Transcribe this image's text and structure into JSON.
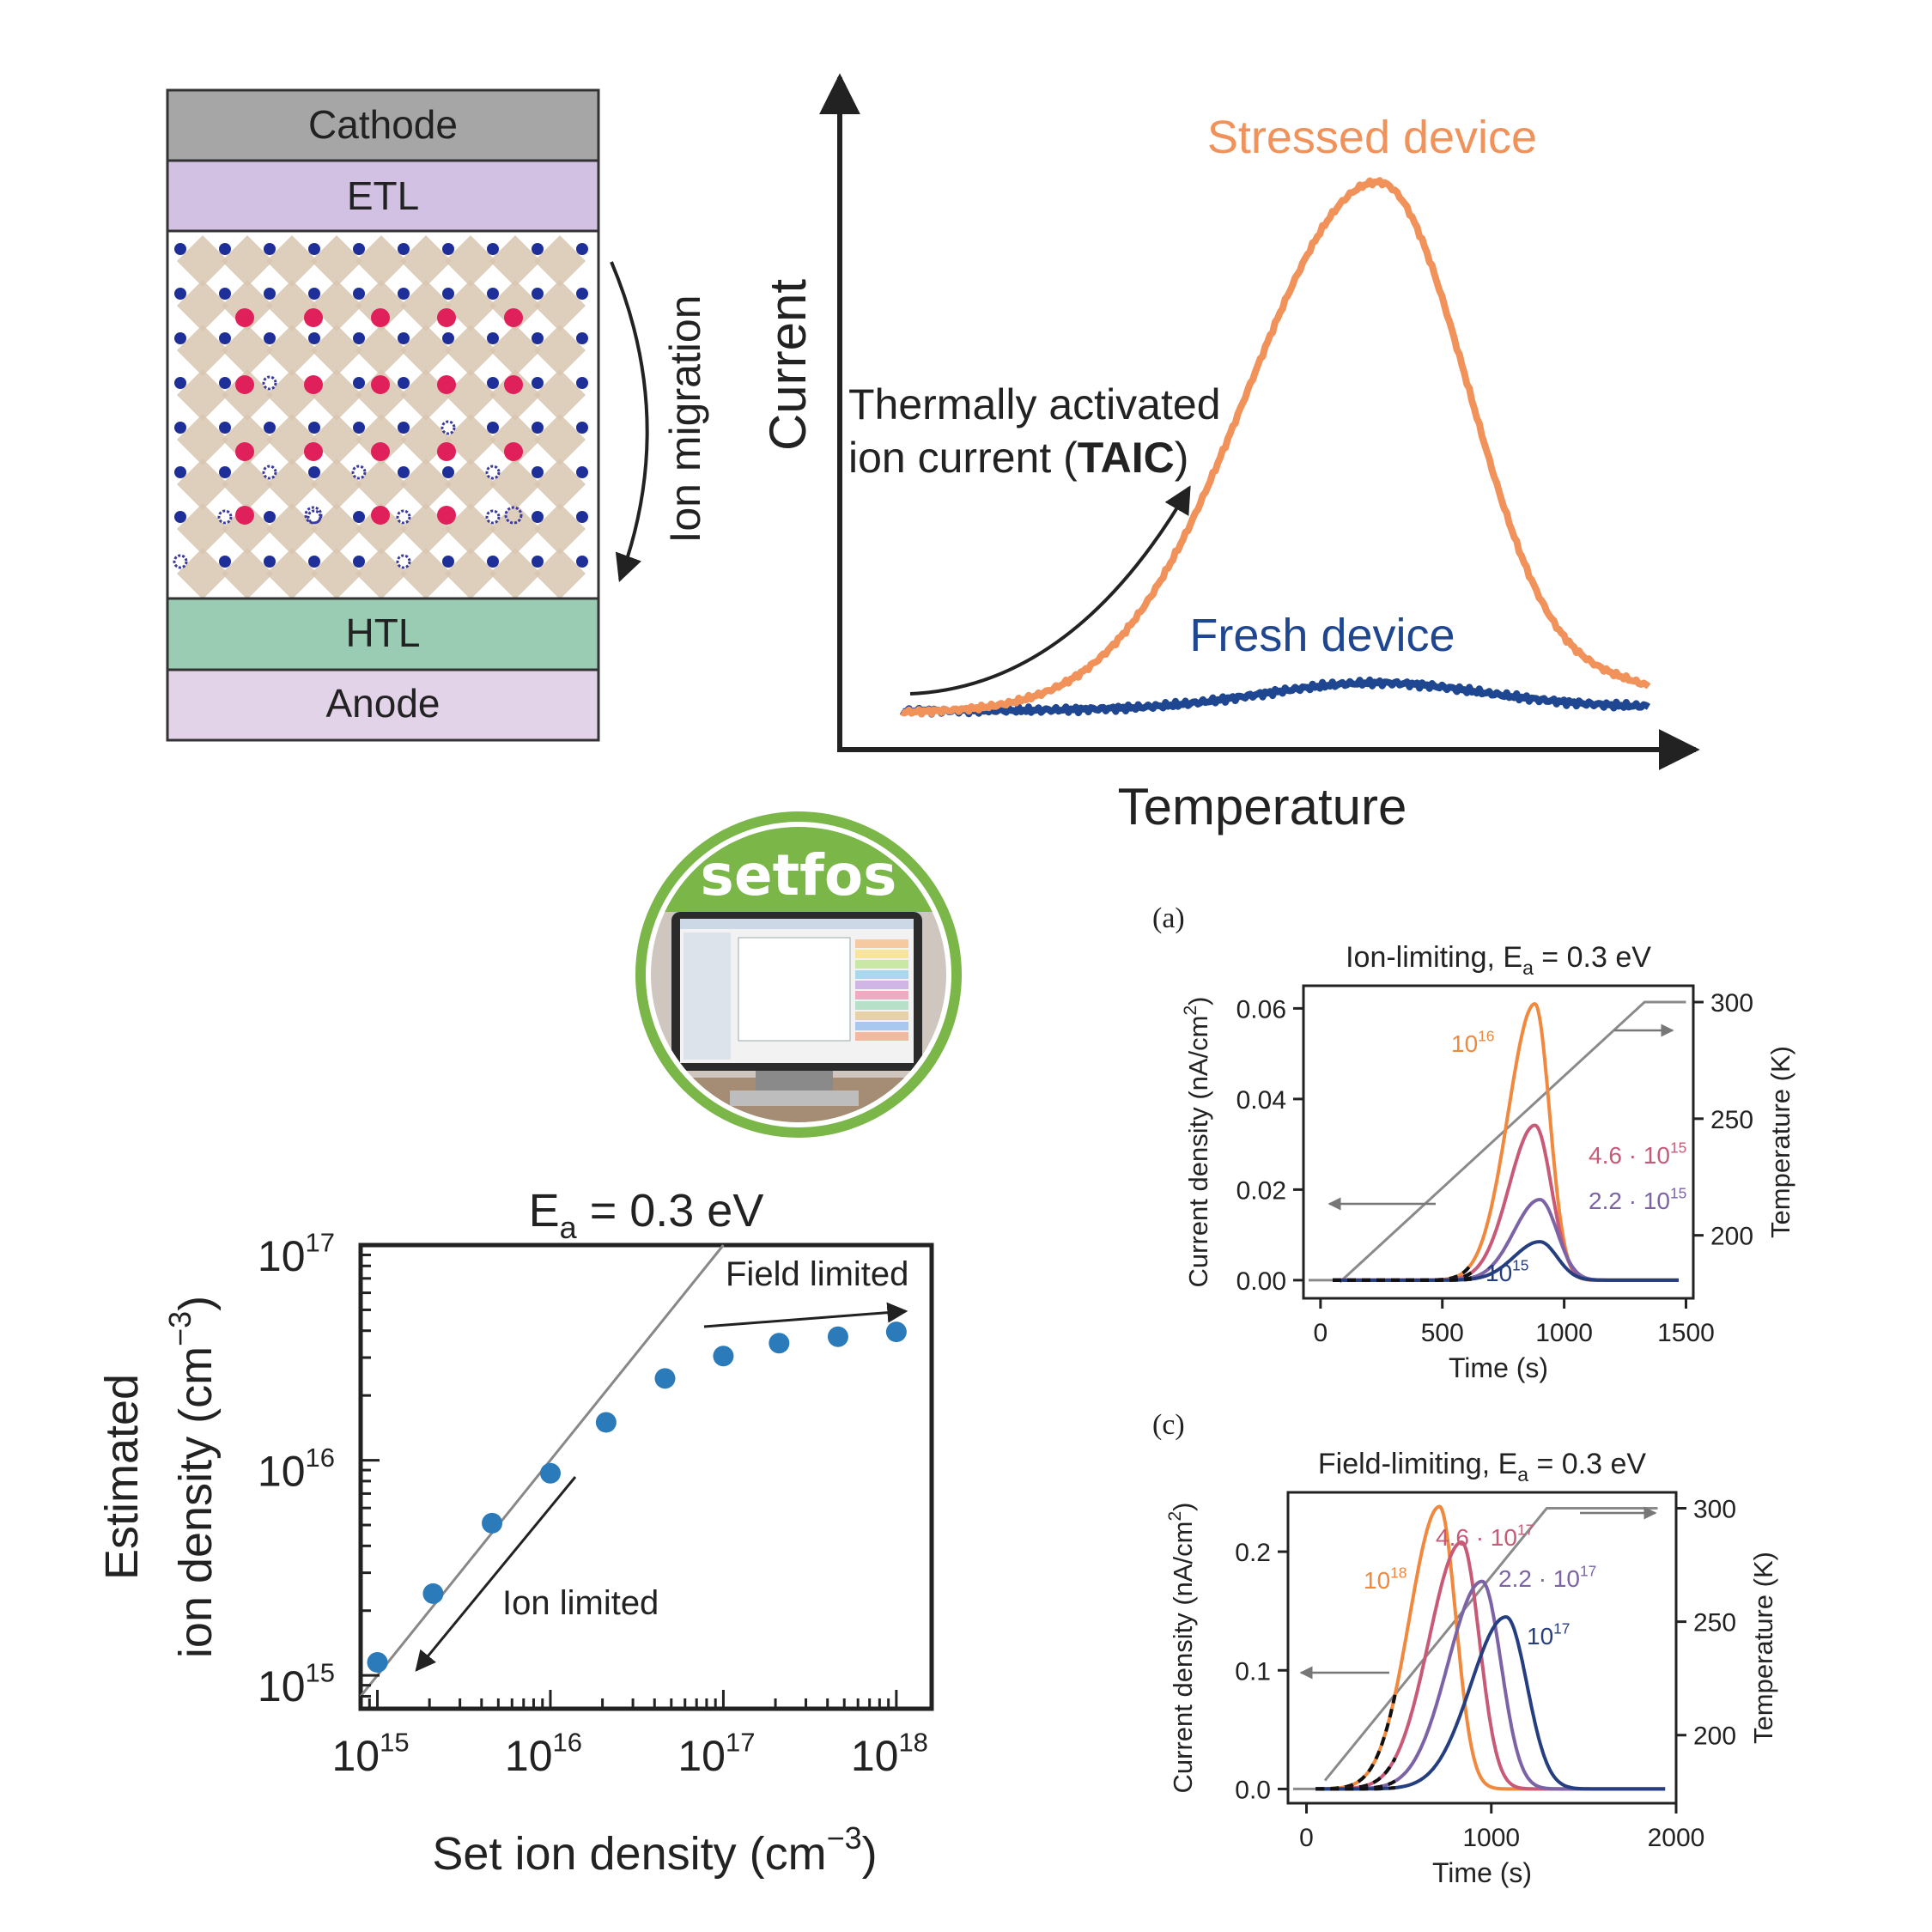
{
  "stack": {
    "layers": [
      {
        "name": "Cathode",
        "color": "#a6a6a6"
      },
      {
        "name": "ETL",
        "color": "#d3c1e3"
      },
      {
        "name": "HTL",
        "color": "#99ccb3"
      },
      {
        "name": "Anode",
        "color": "#e3d3e8"
      }
    ],
    "migration_label": "Ion migration"
  },
  "taic_schematic": {
    "y_label": "Current",
    "x_label": "Temperature",
    "stressed_label": "Stressed device",
    "fresh_label": "Fresh device",
    "annotation_line1": "Thermally activated",
    "annotation_line2_pre": "ion current (",
    "annotation_line2_bold": "TAIC",
    "annotation_line2_post": ")",
    "colors": {
      "stressed": "#f0925a",
      "fresh": "#1f4690"
    }
  },
  "logo": {
    "text": "setfos",
    "ring_color": "#7ab648"
  },
  "chart_data": [
    {
      "type": "scatter",
      "title_main": "E",
      "title_sub": "a",
      "title_rest": " = 0.3 eV",
      "xlabel": "Set ion density (cm",
      "xlabel_sup": "−3",
      "xlabel_end": ")",
      "ylabel_line1": "Estimated",
      "ylabel_line2": "ion density (cm",
      "ylabel_sup": "−3",
      "ylabel_end": ")",
      "x_scale": "log",
      "y_scale": "log",
      "xlim": [
        800000000000000.0,
        1.6e+18
      ],
      "ylim": [
        700000000000000.0,
        1e+17
      ],
      "x_ticks": [
        {
          "base": "10",
          "exp": "15"
        },
        {
          "base": "10",
          "exp": "16"
        },
        {
          "base": "10",
          "exp": "17"
        },
        {
          "base": "10",
          "exp": "18"
        }
      ],
      "y_ticks": [
        {
          "base": "10",
          "exp": "15"
        },
        {
          "base": "10",
          "exp": "16"
        },
        {
          "base": "10",
          "exp": "17"
        }
      ],
      "x": [
        1000000000000000.0,
        2100000000000000.0,
        4600000000000000.0,
        1e+16,
        2.1e+16,
        4.6e+16,
        1e+17,
        2.1e+17,
        4.6e+17,
        1e+18
      ],
      "y": [
        1150000000000000.0,
        2400000000000000.0,
        5100000000000000.0,
        8700000000000000.0,
        1.5e+16,
        2.4e+16,
        3.05e+16,
        3.5e+16,
        3.75e+16,
        3.95e+16
      ],
      "reference_line": "y = x",
      "annotation_field": "Field limited",
      "annotation_ion": "Ion limited",
      "point_color": "#2b7bba"
    },
    {
      "type": "line",
      "panel_label": "(a)",
      "title_main": "Ion-limiting, E",
      "title_sub": "a",
      "title_rest": " = 0.3 eV",
      "xlabel": "Time (s)",
      "ylabel": "Current density (nA/cm",
      "ylabel_sup": "2",
      "ylabel_end": ")",
      "y2label": "Temperature (K)",
      "xlim": [
        -70,
        1530
      ],
      "ylim": [
        -0.004,
        0.065
      ],
      "y2lim": [
        173,
        307
      ],
      "x_ticks": [
        "0",
        "500",
        "1000",
        "1500"
      ],
      "x_tick_values": [
        0,
        500,
        1000,
        1500
      ],
      "y_ticks": [
        "0.00",
        "0.02",
        "0.04",
        "0.06"
      ],
      "y_tick_values": [
        0,
        0.02,
        0.04,
        0.06
      ],
      "y2_ticks": [
        "200",
        "250",
        "300"
      ],
      "y2_tick_values": [
        200,
        250,
        300
      ],
      "series": [
        {
          "label_base": "10",
          "label_exp": "16",
          "color": "#f0883e",
          "peak_x": 880,
          "peak_y": 0.061,
          "sigma_left": 155,
          "sigma_right": 85,
          "fit_end": 620
        },
        {
          "label_base": "4.6 · 10",
          "label_exp": "15",
          "color": "#c85a78",
          "peak_x": 880,
          "peak_y": 0.0342,
          "sigma_left": 150,
          "sigma_right": 95,
          "fit_end": 620
        },
        {
          "label_base": "2.2 · 10",
          "label_exp": "15",
          "color": "#7b63a6",
          "peak_x": 900,
          "peak_y": 0.0178,
          "sigma_left": 150,
          "sigma_right": 100,
          "fit_end": 620
        },
        {
          "label_base": "10",
          "label_exp": "15",
          "color": "#243e80",
          "peak_x": 900,
          "peak_y": 0.0085,
          "sigma_left": 150,
          "sigma_right": 100,
          "fit_end": 620
        }
      ],
      "temperature_ramp": {
        "start_time": 80,
        "start_temp": 180,
        "end_time": 1330,
        "end_temp": 300,
        "final_time": 1500
      }
    },
    {
      "type": "line",
      "panel_label": "(c)",
      "title_main": "Field-limiting, E",
      "title_sub": "a",
      "title_rest": " = 0.3 eV",
      "xlabel": "Time (s)",
      "ylabel": "Current density (nA/cm",
      "ylabel_sup": "2",
      "ylabel_end": ")",
      "y2label": "Temperature (K)",
      "xlim": [
        -100,
        2000
      ],
      "ylim": [
        -0.012,
        0.25
      ],
      "y2lim": [
        170,
        307
      ],
      "x_ticks": [
        "0",
        "1000",
        "2000"
      ],
      "x_tick_values": [
        0,
        1000,
        2000
      ],
      "y_ticks": [
        "0.0",
        "0.1",
        "0.2"
      ],
      "y_tick_values": [
        0,
        0.1,
        0.2
      ],
      "y2_ticks": [
        "200",
        "250",
        "300"
      ],
      "y2_tick_values": [
        200,
        250,
        300
      ],
      "series": [
        {
          "label_base": "10",
          "label_exp": "18",
          "color": "#f0883e",
          "peak_x": 720,
          "peak_y": 0.238,
          "sigma_left": 230,
          "sigma_right": 125,
          "fit_end": 480
        },
        {
          "label_base": "4.6 · 10",
          "label_exp": "17",
          "color": "#c85a78",
          "peak_x": 840,
          "peak_y": 0.208,
          "sigma_left": 250,
          "sigma_right": 135,
          "fit_end": 480
        },
        {
          "label_base": "2.2 · 10",
          "label_exp": "17",
          "color": "#7b63a6",
          "peak_x": 950,
          "peak_y": 0.175,
          "sigma_left": 260,
          "sigma_right": 145,
          "fit_end": 480
        },
        {
          "label_base": "10",
          "label_exp": "17",
          "color": "#243e80",
          "peak_x": 1080,
          "peak_y": 0.145,
          "sigma_left": 270,
          "sigma_right": 160,
          "fit_end": 480
        }
      ],
      "temperature_ramp": {
        "start_time": 100,
        "start_temp": 180,
        "end_time": 1300,
        "end_temp": 300,
        "final_time": 1900
      }
    }
  ]
}
